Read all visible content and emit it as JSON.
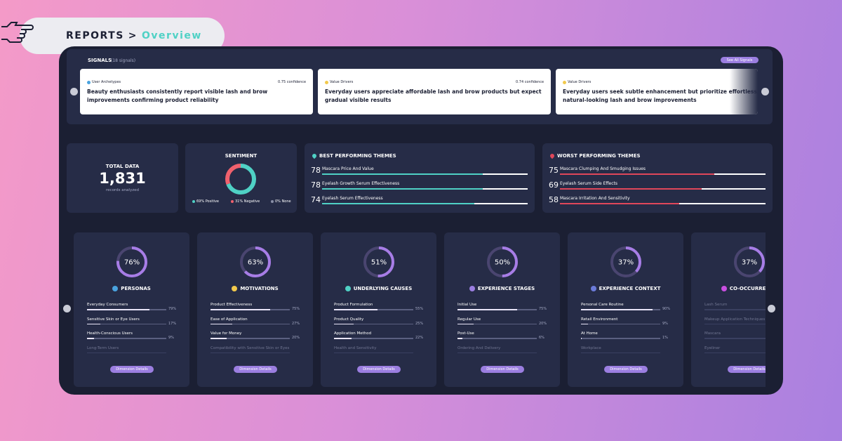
{
  "breadcrumb": {
    "section": "REPORTS",
    "separator": ">",
    "current": "Overview"
  },
  "signals": {
    "title": "SIGNALS",
    "count": "(18 signals)",
    "action": "See All Signals",
    "cards": [
      {
        "tag": "User Archetypes",
        "confidence": "0.75 confidence",
        "text": "Beauty enthusiasts consistently report visible lash and brow improvements confirming product reliability"
      },
      {
        "tag": "Value Drivers",
        "confidence": "0.74 confidence",
        "text": "Everyday users appreciate affordable lash and brow products but expect gradual visible results"
      },
      {
        "tag": "Value Drivers",
        "text": "Everyday users seek subtle enhancement but prioritize effortless, natural-looking lash and brow improvements"
      }
    ]
  },
  "total_data": {
    "title": "TOTAL DATA",
    "value": "1,831",
    "caption": "records analyzed"
  },
  "sentiment": {
    "title": "SENTIMENT",
    "segments": [
      {
        "label": "69% Positive",
        "value": 69,
        "color": "#4fd1c5"
      },
      {
        "label": "31% Negative",
        "value": 31,
        "color": "#f0616d"
      },
      {
        "label": "0% None",
        "value": 0,
        "color": "#8a8fa8"
      }
    ]
  },
  "best_themes": {
    "title": "BEST PERFORMING THEMES",
    "items": [
      {
        "score": 78,
        "name": "Mascara Price And Value"
      },
      {
        "score": 78,
        "name": "Eyelash Growth Serum Effectiveness"
      },
      {
        "score": 74,
        "name": "Eyelash Serum Effectiveness"
      }
    ]
  },
  "worst_themes": {
    "title": "WORST PERFORMING THEMES",
    "items": [
      {
        "score": 75,
        "name": "Mascara Clumping And Smudging Issues"
      },
      {
        "score": 69,
        "name": "Eyelash Serum Side Effects"
      },
      {
        "score": 58,
        "name": "Mascara Irritation And Sensitivity"
      }
    ]
  },
  "dimensions": [
    {
      "value": 76,
      "value_label": "76%",
      "title": "PERSONAS",
      "button": "Dimension Details",
      "items": [
        {
          "name": "Everyday Consumers",
          "value": 79,
          "value_label": "79%"
        },
        {
          "name": "Sensitive Skin or Eye Users",
          "value": 17,
          "value_label": "17%"
        },
        {
          "name": "Health-Conscious Users",
          "value": 9,
          "value_label": "9%"
        },
        {
          "name": "Long-Term Users"
        }
      ]
    },
    {
      "value": 63,
      "value_label": "63%",
      "title": "MOTIVATIONS",
      "button": "Dimension Details",
      "items": [
        {
          "name": "Product Effectiveness",
          "value": 75,
          "value_label": "75%"
        },
        {
          "name": "Ease of Application",
          "value": 27,
          "value_label": "27%"
        },
        {
          "name": "Value for Money",
          "value": 20,
          "value_label": "20%"
        },
        {
          "name": "Compatibility with Sensitive Skin or Eyes"
        }
      ]
    },
    {
      "value": 51,
      "value_label": "51%",
      "title": "UNDERLYING CAUSES",
      "button": "Dimension Details",
      "items": [
        {
          "name": "Product Formulation",
          "value": 55,
          "value_label": "55%"
        },
        {
          "name": "Product Quality",
          "value": 25,
          "value_label": "25%"
        },
        {
          "name": "Application Method",
          "value": 22,
          "value_label": "22%"
        },
        {
          "name": "Health and Sensitivity"
        }
      ]
    },
    {
      "value": 50,
      "value_label": "50%",
      "title": "EXPERIENCE STAGES",
      "button": "Dimension Details",
      "items": [
        {
          "name": "Initial Use",
          "value": 75,
          "value_label": "75%"
        },
        {
          "name": "Regular Use",
          "value": 20,
          "value_label": "20%"
        },
        {
          "name": "Post-Use",
          "value": 6,
          "value_label": "6%"
        },
        {
          "name": "Ordering And Delivery"
        }
      ]
    },
    {
      "value": 37,
      "value_label": "37%",
      "title": "EXPERIENCE CONTEXT",
      "button": "Dimension Details",
      "items": [
        {
          "name": "Personal Care Routine",
          "value": 90,
          "value_label": "90%"
        },
        {
          "name": "Retail Environment",
          "value": 9,
          "value_label": "9%"
        },
        {
          "name": "At Home",
          "value": 1,
          "value_label": "1%"
        },
        {
          "name": "Workplace"
        }
      ]
    },
    {
      "value": 37,
      "value_label": "37%",
      "title": "CO-OCCURRENCE",
      "button": "Dimension Details",
      "items": [
        {
          "name": "Lash Serum"
        },
        {
          "name": "Makeup Application Techniques"
        },
        {
          "name": "Mascara"
        },
        {
          "name": "Eyeliner"
        }
      ]
    }
  ]
}
